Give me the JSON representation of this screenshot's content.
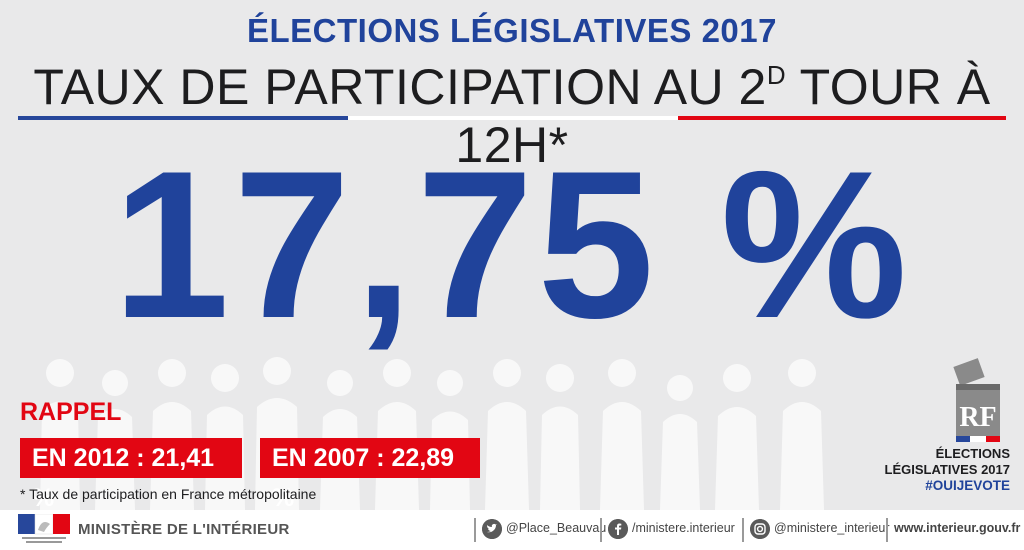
{
  "header": {
    "kicker": "ÉLECTIONS LÉGISLATIVES 2017",
    "headline_part1": "TAUX DE PARTICIPATION AU 2",
    "headline_sup": "D",
    "headline_part2": " TOUR À 12H*"
  },
  "main": {
    "rate": "17,75 %"
  },
  "recall": {
    "title": "RAPPEL",
    "items": [
      "EN 2012 : 21,41 %",
      "EN 2007 : 22,89 %"
    ],
    "footnote": "* Taux de participation en France métropolitaine"
  },
  "brand": {
    "line1": "ÉLECTIONS",
    "line2": "LÉGISLATIVES 2017",
    "hashtag": "#OUIJEVOTE",
    "badge_text": "RF"
  },
  "footer": {
    "ministry": "MINISTÈRE DE L'INTÉRIEUR",
    "twitter": "@Place_Beauvau",
    "facebook": "/ministere.interieur",
    "instagram": "@ministere_interieur",
    "website": "www.interieur.gouv.fr"
  },
  "colors": {
    "blue": "#20439b",
    "red": "#e20613",
    "background": "#e9e9ea"
  }
}
